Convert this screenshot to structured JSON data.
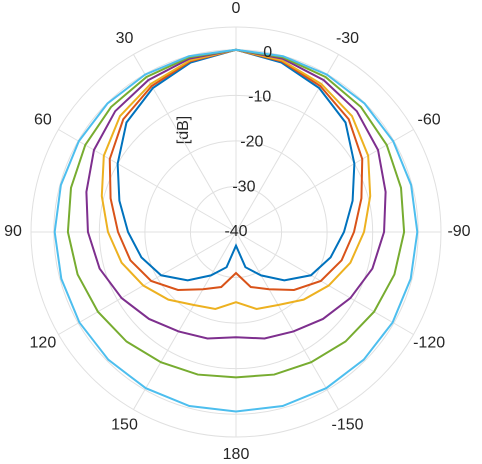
{
  "chart_data": {
    "type": "polar",
    "r_label": "[dB]",
    "theta_direction": "counterclockwise",
    "theta_zero": "top",
    "rlim": [
      -40,
      5
    ],
    "rticks": [
      -40,
      -30,
      -20,
      -10,
      0
    ],
    "thetaticks": [
      0,
      30,
      60,
      90,
      120,
      150,
      180,
      -150,
      -120,
      -90,
      -60,
      -30
    ],
    "grid": true,
    "theta": [
      0,
      15,
      30,
      45,
      60,
      75,
      90,
      105,
      120,
      135,
      150,
      165,
      180,
      195,
      210,
      225,
      240,
      255,
      270,
      285,
      300,
      315,
      330,
      345,
      360
    ],
    "series": [
      {
        "color": "#0072bd",
        "values": [
          0,
          -1.5,
          -3.5,
          -6,
          -10,
          -13.5,
          -16.3,
          -18.5,
          -21,
          -25,
          -29,
          -32,
          -37,
          -32,
          -29,
          -25,
          -21,
          -18.5,
          -16.3,
          -13.5,
          -10,
          -6,
          -3.5,
          -1.5,
          0
        ]
      },
      {
        "color": "#d95319",
        "values": [
          0,
          -1.2,
          -3,
          -5,
          -8,
          -11.5,
          -14.1,
          -16,
          -18.5,
          -22,
          -25.5,
          -27.5,
          -31,
          -27.5,
          -25.5,
          -22,
          -18.5,
          -16,
          -14.1,
          -11.5,
          -8,
          -5,
          -3,
          -1.2,
          0
        ]
      },
      {
        "color": "#edb120",
        "values": [
          0,
          -1,
          -2.5,
          -4,
          -6.5,
          -9.5,
          -11.9,
          -14,
          -16.5,
          -19,
          -21.5,
          -22.5,
          -24.6,
          -22.5,
          -21.5,
          -19,
          -16.5,
          -14,
          -11.9,
          -9.5,
          -6.5,
          -4,
          -2.5,
          -1,
          0
        ]
      },
      {
        "color": "#7e2f8e",
        "values": [
          0,
          -0.6,
          -1.5,
          -2.5,
          -4,
          -6,
          -7.5,
          -9,
          -11,
          -13,
          -14.8,
          -15.8,
          -16.9,
          -15.8,
          -14.8,
          -13,
          -11,
          -9,
          -7.5,
          -6,
          -4,
          -2.5,
          -1.5,
          -0.6,
          0
        ]
      },
      {
        "color": "#77ac30",
        "values": [
          0,
          -0.3,
          -0.7,
          -1.2,
          -1.8,
          -2.5,
          -3.1,
          -4,
          -5,
          -6,
          -7,
          -7.6,
          -8.1,
          -7.6,
          -7,
          -6,
          -5,
          -4,
          -3.1,
          -2.5,
          -1.8,
          -1.2,
          -0.7,
          -0.3,
          0
        ]
      },
      {
        "color": "#4dbeee",
        "values": [
          0,
          -0.05,
          -0.1,
          -0.1,
          -0.15,
          -0.2,
          -0.2,
          -0.3,
          -0.3,
          -0.35,
          -0.4,
          -0.45,
          -0.6,
          -0.45,
          -0.4,
          -0.35,
          -0.3,
          -0.3,
          -0.2,
          -0.2,
          -0.15,
          -0.1,
          -0.1,
          -0.05,
          0
        ]
      }
    ]
  }
}
